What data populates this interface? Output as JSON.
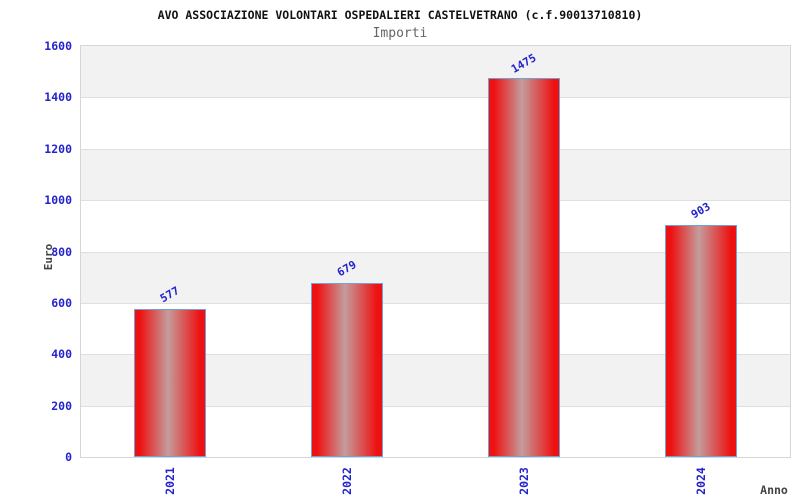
{
  "chart_data": {
    "type": "bar",
    "title": "AVO ASSOCIAZIONE VOLONTARI OSPEDALIERI CASTELVETRANO (c.f.90013710810)",
    "subtitle": "Importi",
    "xlabel": "Anno",
    "ylabel": "Euro",
    "categories": [
      "2021",
      "2022",
      "2023",
      "2024"
    ],
    "values": [
      577,
      679,
      1475,
      903
    ],
    "value_labels": [
      "577",
      "679",
      "1475",
      "903"
    ],
    "ylim": [
      0,
      1600
    ],
    "yticks": [
      0,
      200,
      400,
      600,
      800,
      1000,
      1200,
      1400,
      1600
    ],
    "grid": "horizontal-bands",
    "legend": "none",
    "colors": {
      "title": "#111111",
      "subtitle": "#666666",
      "axis_label": "#444444",
      "tick_label": "#2424cd",
      "band_gray": "#f2f2f2",
      "band_white": "#ffffff",
      "plot_border": "#d6d6d6",
      "gridline": "#dfdfdf",
      "bar_border": "#74a0d8",
      "bar_edge": "#ee1111",
      "bar_center": "#c49c9c"
    }
  }
}
